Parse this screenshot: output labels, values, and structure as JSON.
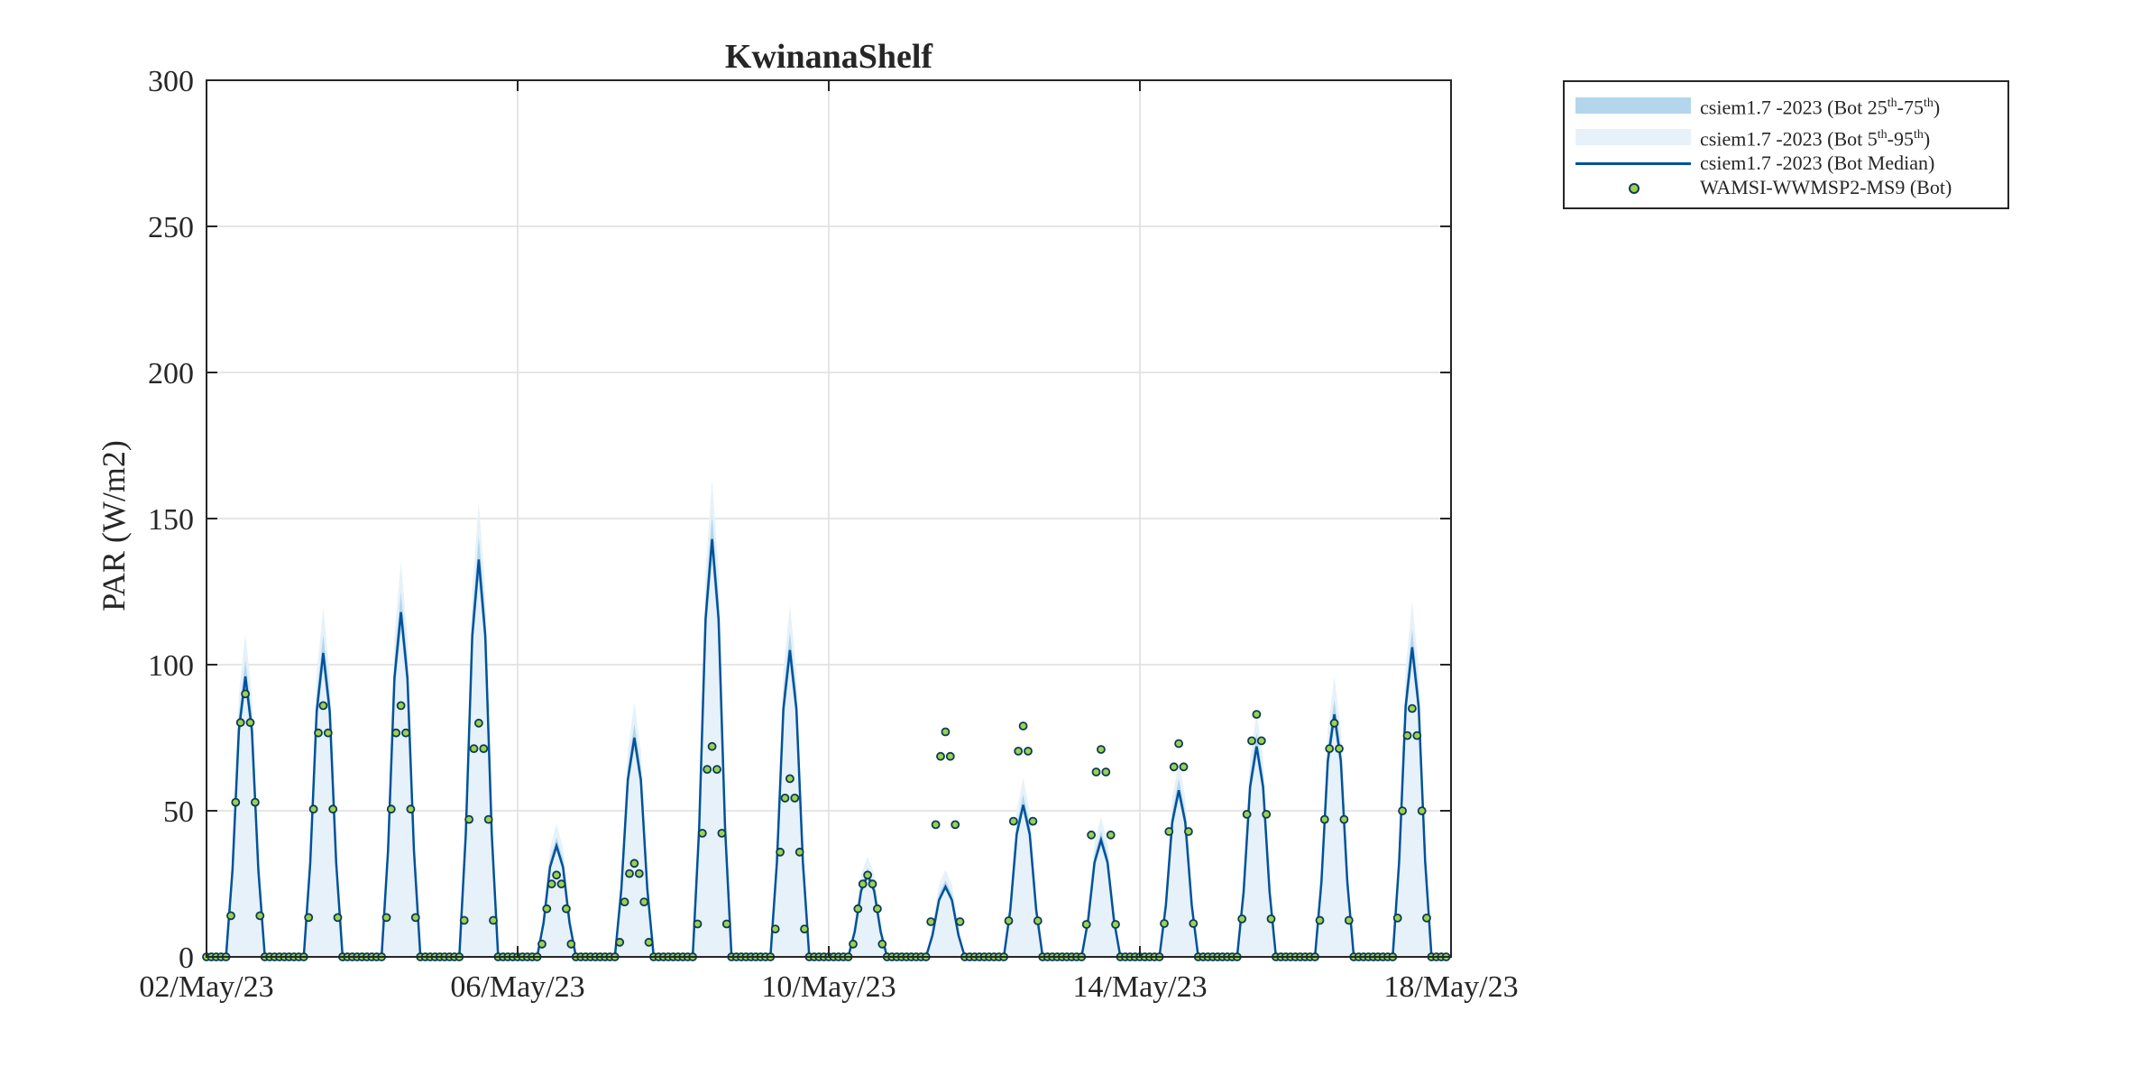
{
  "chart_data": {
    "type": "line",
    "title": "KwinanaShelf",
    "xlabel": "",
    "ylabel": "PAR (W/m2)",
    "ylim": [
      0,
      300
    ],
    "y_ticks": [
      0,
      50,
      100,
      150,
      200,
      250,
      300
    ],
    "x_range_days": [
      "02/May/23",
      "18/May/23"
    ],
    "x_ticks": [
      "02/May/23",
      "06/May/23",
      "10/May/23",
      "14/May/23",
      "18/May/23"
    ],
    "grid": true,
    "legend_position": "outside top-right",
    "legend": {
      "band_iqr": {
        "main": "csiem1.7  -2023  (Bot  25",
        "sup1": "th",
        "mid": "-75",
        "sup2": "th",
        "end": ")"
      },
      "band_90": {
        "main": "csiem1.7  -2023  (Bot  5",
        "sup1": "th",
        "mid": "-95",
        "sup2": "th",
        "end": ")"
      },
      "median": "csiem1.7 -2023 (Bot Median)",
      "obs": "WAMSI-WWMSP2-MS9 (Bot)"
    },
    "colors": {
      "band_iqr": "#b3d6ec",
      "band_90": "#e6f1f9",
      "median": "#00529a",
      "obs_fill": "#9cd24a",
      "obs_edge": "#0b3b5c"
    },
    "series": [
      {
        "name": "csiem1.7 -2023 (Bot Median)",
        "note_peaks": "daily peak of modelled median PAR (W/m2), 02-18 May 2023",
        "daily_peaks": [
          {
            "date": "2023-05-02",
            "peak": 96
          },
          {
            "date": "2023-05-03",
            "peak": 104
          },
          {
            "date": "2023-05-04",
            "peak": 118
          },
          {
            "date": "2023-05-05",
            "peak": 136
          },
          {
            "date": "2023-05-06",
            "peak": 38
          },
          {
            "date": "2023-05-07",
            "peak": 75
          },
          {
            "date": "2023-05-08",
            "peak": 143
          },
          {
            "date": "2023-05-09",
            "peak": 105
          },
          {
            "date": "2023-05-10",
            "peak": 28
          },
          {
            "date": "2023-05-11",
            "peak": 24
          },
          {
            "date": "2023-05-12",
            "peak": 52
          },
          {
            "date": "2023-05-13",
            "peak": 40
          },
          {
            "date": "2023-05-14",
            "peak": 57
          },
          {
            "date": "2023-05-15",
            "peak": 72
          },
          {
            "date": "2023-05-16",
            "peak": 83
          },
          {
            "date": "2023-05-17",
            "peak": 106
          }
        ]
      },
      {
        "name": "WAMSI-WWMSP2-MS9 (Bot)",
        "daily_peaks": [
          {
            "date": "2023-05-02",
            "peak": 90
          },
          {
            "date": "2023-05-03",
            "peak": 86
          },
          {
            "date": "2023-05-04",
            "peak": 86
          },
          {
            "date": "2023-05-05",
            "peak": 80
          },
          {
            "date": "2023-05-06",
            "peak": 28
          },
          {
            "date": "2023-05-07",
            "peak": 32
          },
          {
            "date": "2023-05-08",
            "peak": 72
          },
          {
            "date": "2023-05-09",
            "peak": 61
          },
          {
            "date": "2023-05-10",
            "peak": 28
          },
          {
            "date": "2023-05-11",
            "peak": 77
          },
          {
            "date": "2023-05-12",
            "peak": 79
          },
          {
            "date": "2023-05-13",
            "peak": 71
          },
          {
            "date": "2023-05-14",
            "peak": 73
          },
          {
            "date": "2023-05-15",
            "peak": 83
          },
          {
            "date": "2023-05-16",
            "peak": 80
          },
          {
            "date": "2023-05-17",
            "peak": 85
          }
        ]
      }
    ]
  }
}
